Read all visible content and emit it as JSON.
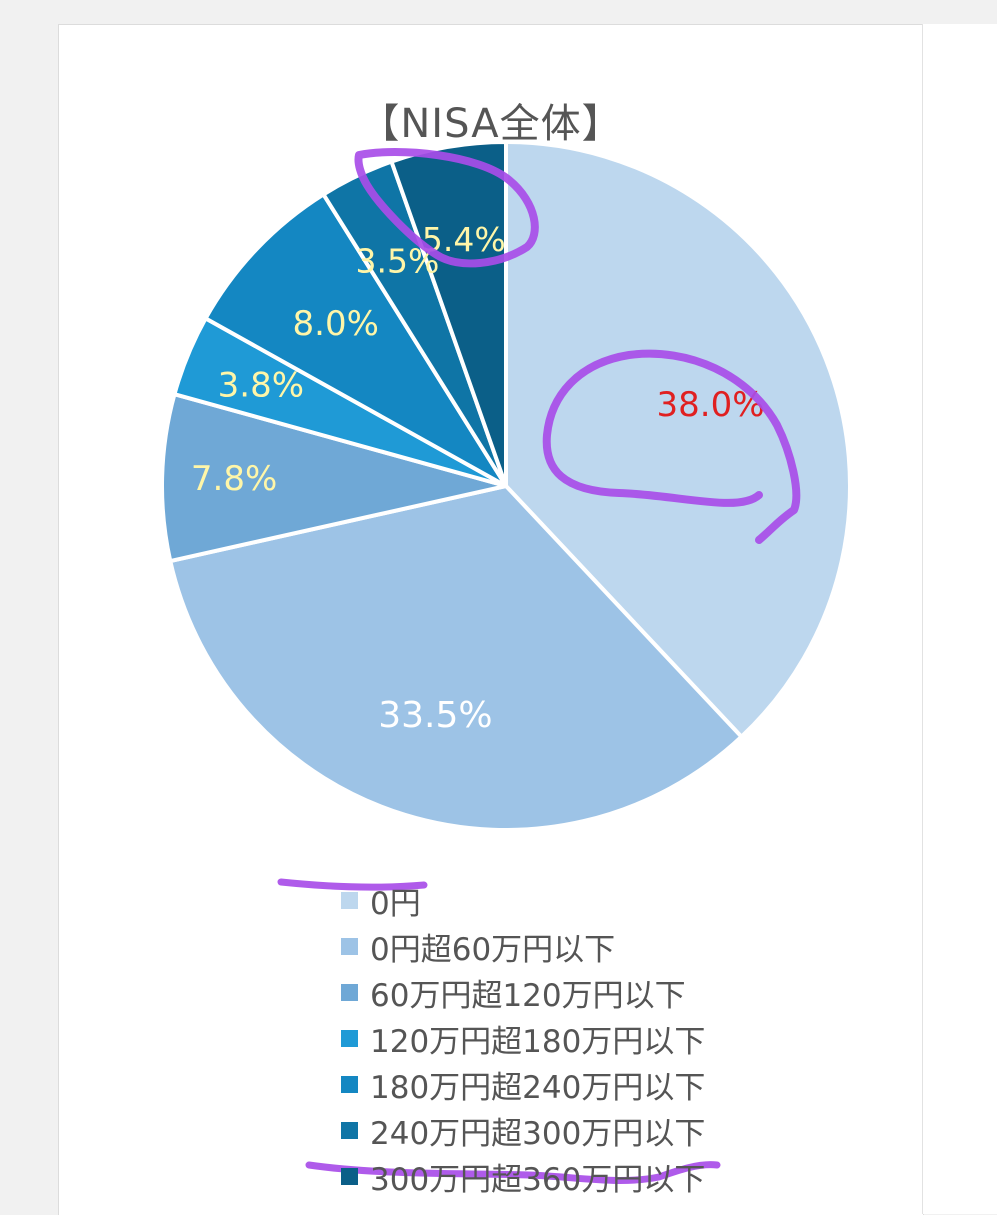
{
  "chart_data": {
    "type": "pie",
    "title": "【NISA全体】",
    "categories": [
      "0円",
      "0円超60万円以下",
      "60万円超120万円以下",
      "120万円超180万円以下",
      "180万円超240万円以下",
      "240万円超300万円以下",
      "300万円超360万円以下"
    ],
    "values": [
      38.0,
      33.5,
      7.8,
      3.8,
      8.0,
      3.5,
      5.4
    ],
    "data_labels": [
      "38.0%",
      "33.5%",
      "7.8%",
      "3.8%",
      "8.0%",
      "3.5%",
      "5.4%"
    ],
    "colors": [
      "#bdd7ee",
      "#9dc3e6",
      "#6fa8d6",
      "#1f9ad6",
      "#1487c2",
      "#0f75a6",
      "#0b5f88"
    ],
    "label_colors": [
      "#e02020",
      "#ffffff",
      "#fff6a8",
      "#fff6a8",
      "#fff6a8",
      "#fff6a8",
      "#fff6a8"
    ],
    "legend_position": "bottom",
    "start": "top, clockwise"
  },
  "annotations": {
    "marker_color": "#a84de8"
  },
  "page": {
    "background": "#f1f1f1",
    "card_background": "#ffffff",
    "title_color": "#555555",
    "legend_text_color": "#555555"
  }
}
